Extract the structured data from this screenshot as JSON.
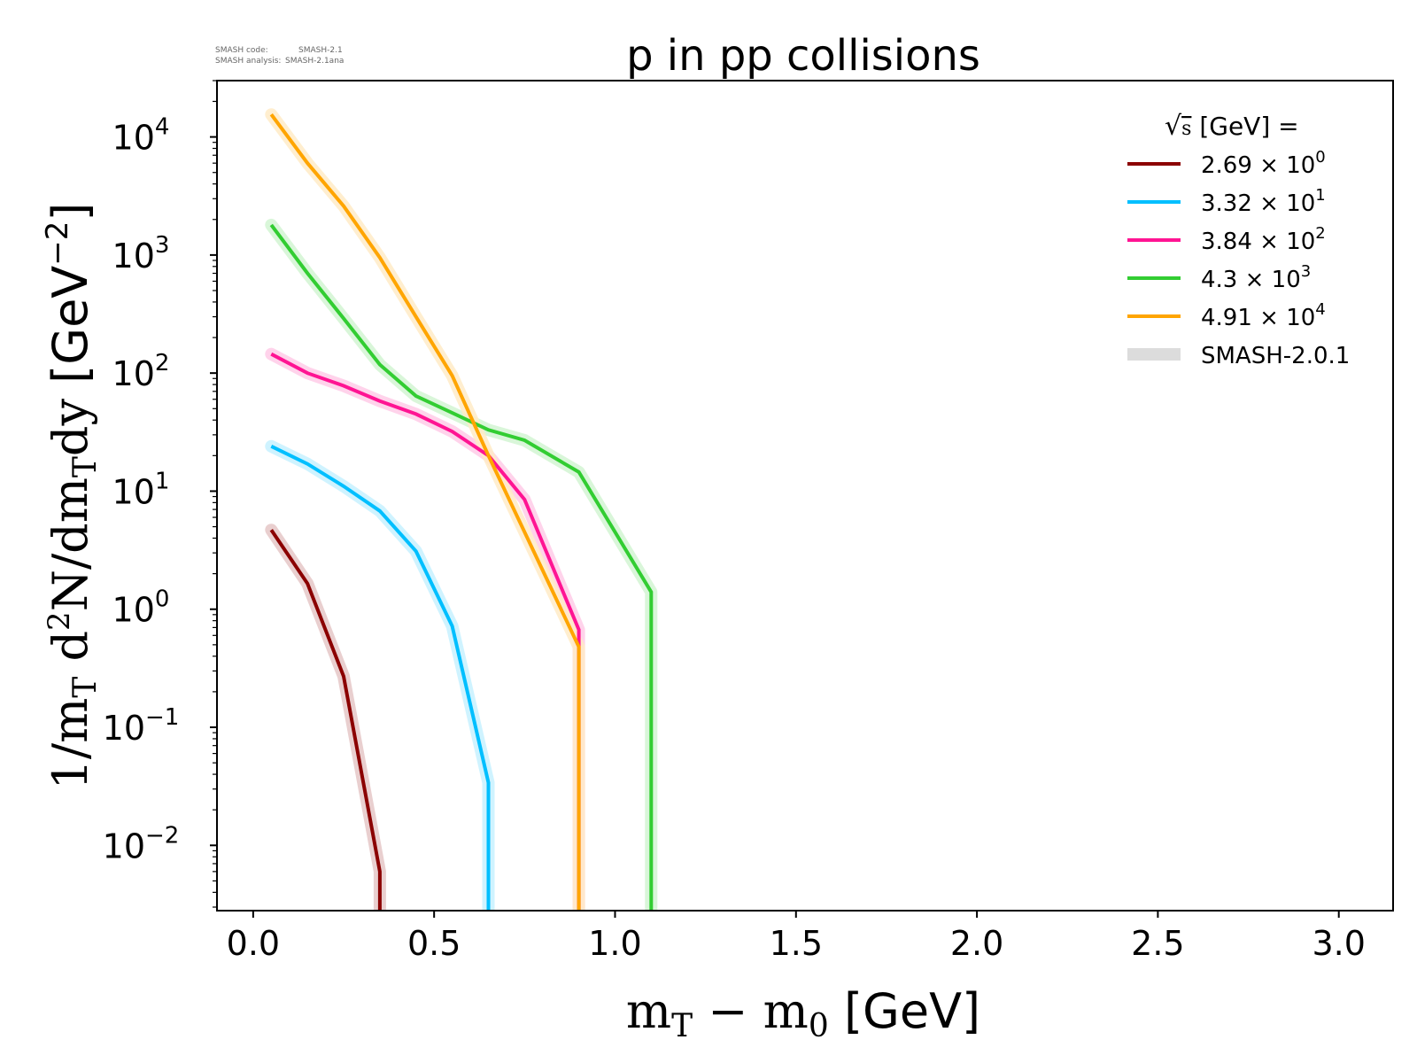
{
  "credits": {
    "line1_key": "SMASH code:",
    "line1_value": "SMASH-2.1",
    "line2_key": "SMASH analysis:",
    "line2_value": "SMASH-2.1ana"
  },
  "chart_data": {
    "type": "line",
    "title": "p in pp collisions",
    "xlabel": "m_T − m_0 [GeV]",
    "ylabel": "1/m_T d²N/dm_Tdy [GeV⁻²]",
    "xlim": [
      -0.1,
      3.15
    ],
    "ylim": [
      0.0028,
      30000
    ],
    "yscale": "log",
    "xticks": [
      0.0,
      0.5,
      1.0,
      1.5,
      2.0,
      2.5,
      3.0
    ],
    "xtick_labels": [
      "0.0",
      "0.5",
      "1.0",
      "1.5",
      "2.0",
      "2.5",
      "3.0"
    ],
    "yticks": [
      0.01,
      0.1,
      1,
      10,
      100,
      1000,
      10000
    ],
    "ytick_labels": [
      {
        "base": "10",
        "exp": "−2"
      },
      {
        "base": "10",
        "exp": "−1"
      },
      {
        "base": "10",
        "exp": "0"
      },
      {
        "base": "10",
        "exp": "1"
      },
      {
        "base": "10",
        "exp": "2"
      },
      {
        "base": "10",
        "exp": "3"
      },
      {
        "base": "10",
        "exp": "4"
      }
    ],
    "grid": false,
    "legend_position": "top-right",
    "legend_title": "√s [GeV] =",
    "series": [
      {
        "name": "2.69 × 10⁰",
        "label_mantissa": "2.69",
        "label_exp": "0",
        "color": "#8b0000",
        "x": [
          0.05,
          0.15,
          0.25,
          0.35,
          0.35
        ],
        "y": [
          4.7,
          1.65,
          0.27,
          0.006,
          0.0001
        ]
      },
      {
        "name": "3.32 × 10¹",
        "label_mantissa": "3.32",
        "label_exp": "1",
        "color": "#00bfff",
        "x": [
          0.05,
          0.15,
          0.25,
          0.35,
          0.45,
          0.55,
          0.65,
          0.65
        ],
        "y": [
          24,
          17,
          11,
          6.8,
          3.1,
          0.72,
          0.034,
          0.0001
        ]
      },
      {
        "name": "3.84 × 10²",
        "label_mantissa": "3.84",
        "label_exp": "2",
        "color": "#ff1493",
        "x": [
          0.05,
          0.15,
          0.25,
          0.35,
          0.45,
          0.55,
          0.65,
          0.75,
          0.9,
          0.9
        ],
        "y": [
          145,
          100,
          78,
          58,
          45,
          32,
          20,
          8.5,
          0.67,
          0.0001
        ]
      },
      {
        "name": "4.3 × 10³",
        "label_mantissa": "4.3",
        "label_exp": "3",
        "color": "#32cd32",
        "x": [
          0.05,
          0.15,
          0.25,
          0.35,
          0.45,
          0.55,
          0.65,
          0.75,
          0.9,
          1.1,
          1.1
        ],
        "y": [
          1800,
          700,
          290,
          118,
          64,
          46,
          33,
          27,
          14.5,
          1.4,
          0.0001
        ]
      },
      {
        "name": "4.91 × 10⁴",
        "label_mantissa": "4.91",
        "label_exp": "4",
        "color": "#ffa500",
        "x": [
          0.05,
          0.15,
          0.25,
          0.35,
          0.45,
          0.55,
          0.65,
          0.9,
          0.9
        ],
        "y": [
          15500,
          6000,
          2600,
          950,
          300,
          95,
          20,
          0.48,
          0.0001
        ]
      }
    ],
    "reference": {
      "name": "SMASH-2.0.1",
      "color": "#dcdcdc"
    }
  }
}
